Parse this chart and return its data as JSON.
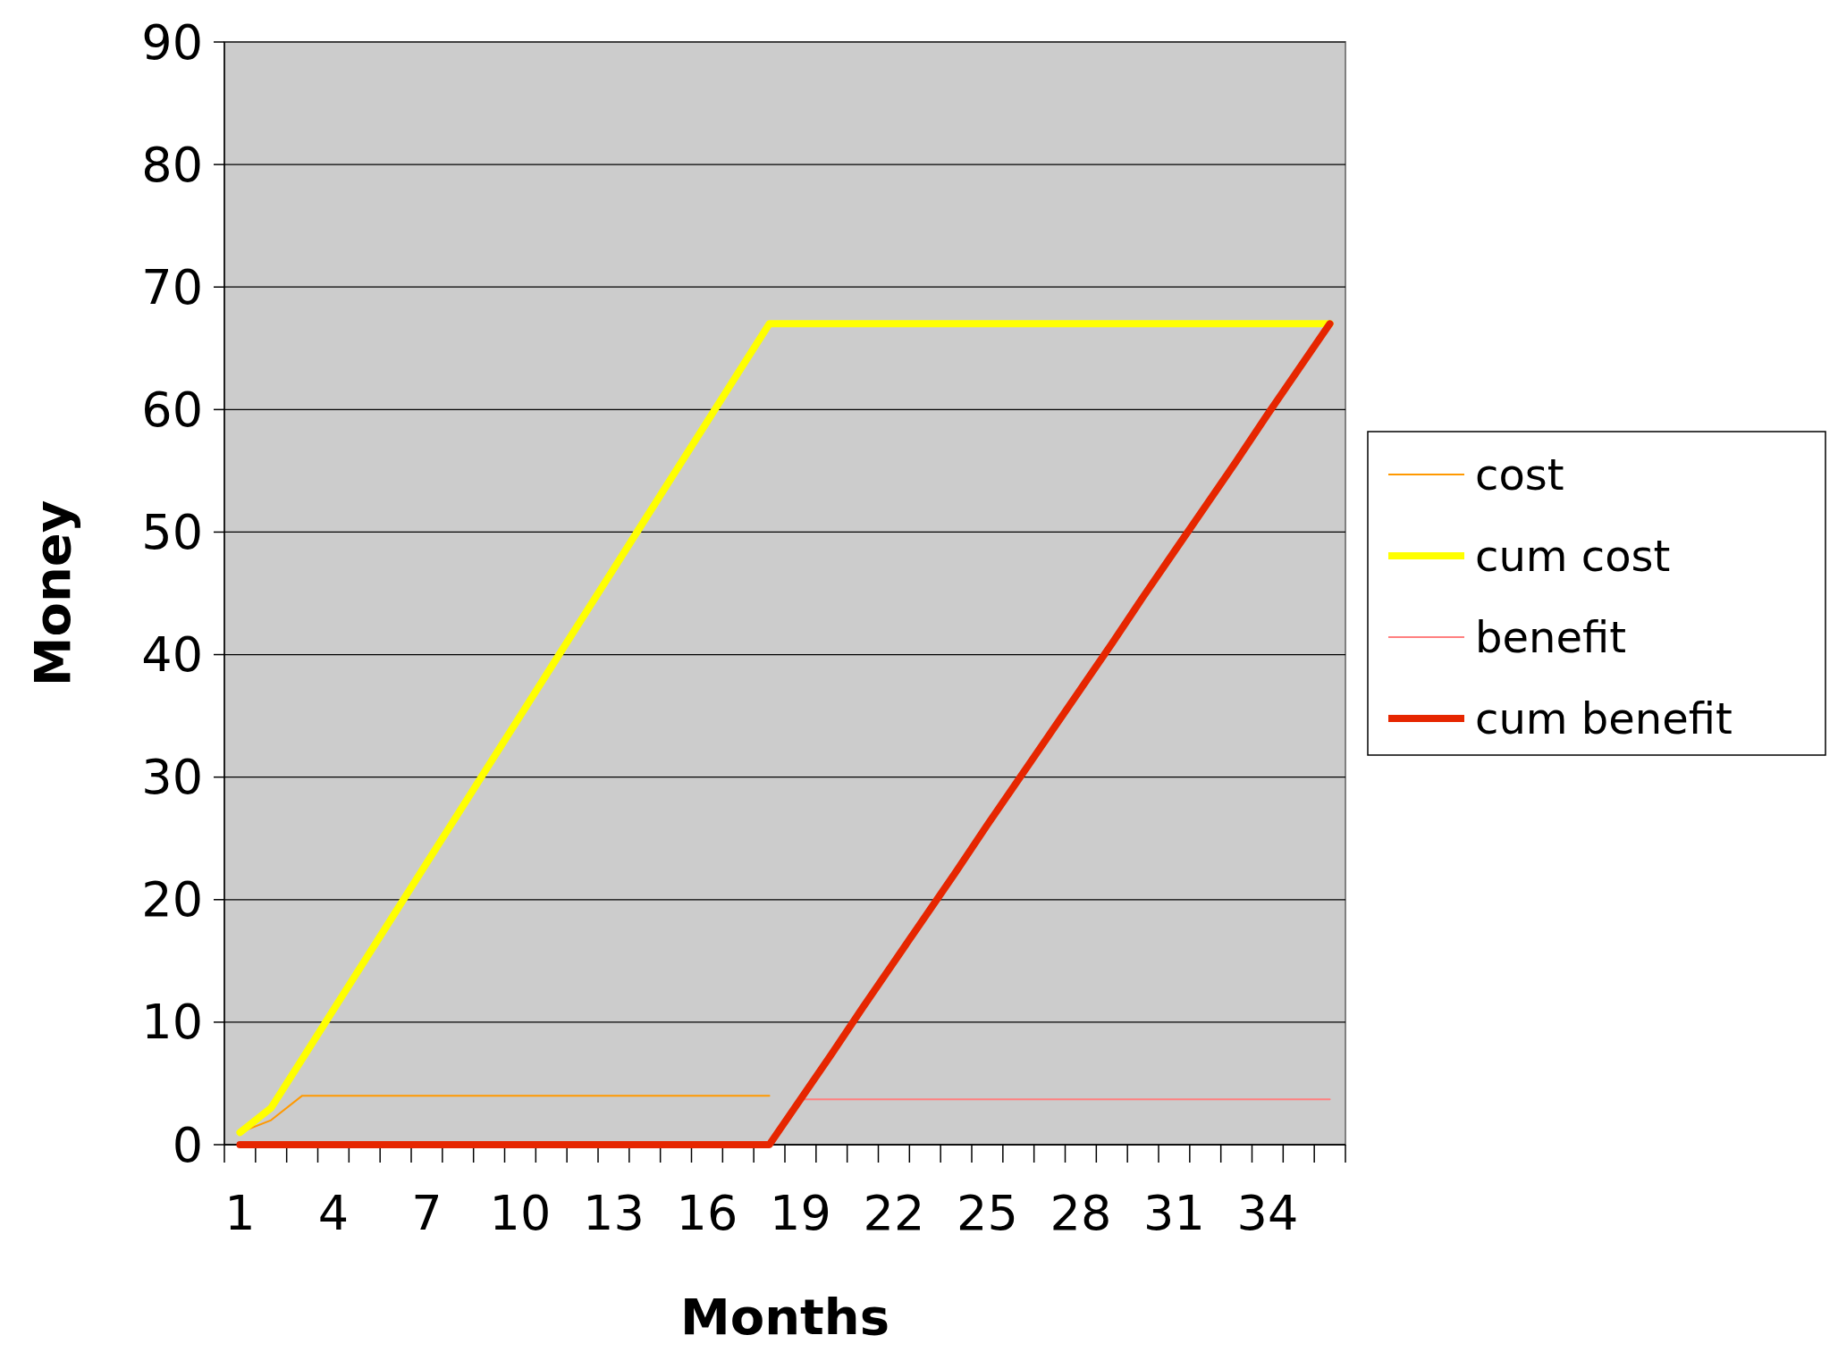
{
  "chart_data": {
    "type": "line",
    "xlabel": "Months",
    "ylabel": "Money",
    "categories": [
      "1",
      null,
      null,
      "4",
      null,
      null,
      "7",
      null,
      null,
      "10",
      null,
      null,
      "13",
      null,
      null,
      "16",
      null,
      null,
      "19",
      null,
      null,
      "22",
      null,
      null,
      "25",
      null,
      null,
      "28",
      null,
      null,
      "31",
      null,
      null,
      "34",
      null,
      null
    ],
    "ylim": [
      0,
      90
    ],
    "yticks": [
      0,
      10,
      20,
      30,
      40,
      50,
      60,
      70,
      80,
      90
    ],
    "grid": "y",
    "legend": "right",
    "line_style": "solid",
    "series": [
      {
        "name": "cost",
        "color": "#ff9900",
        "values": [
          1,
          2,
          4,
          4,
          4,
          4,
          4,
          4,
          4,
          4,
          4,
          4,
          4,
          4,
          4,
          4,
          4,
          4,
          null,
          null,
          null,
          null,
          null,
          null,
          null,
          null,
          null,
          null,
          null,
          null,
          null,
          null,
          null,
          null,
          null,
          null
        ]
      },
      {
        "name": "cum cost",
        "color": "#ffff00",
        "values": [
          1,
          3,
          7,
          11,
          15,
          19,
          23,
          27,
          31,
          35,
          39,
          43,
          47,
          51,
          55,
          59,
          63,
          67,
          67,
          67,
          67,
          67,
          67,
          67,
          67,
          67,
          67,
          67,
          67,
          67,
          67,
          67,
          67,
          67,
          67,
          67
        ]
      },
      {
        "name": "benefit",
        "color": "#ff8080",
        "values": [
          null,
          null,
          null,
          null,
          null,
          null,
          null,
          null,
          null,
          null,
          null,
          null,
          null,
          null,
          null,
          null,
          null,
          null,
          3.7,
          3.7,
          3.7,
          3.7,
          3.7,
          3.7,
          3.7,
          3.7,
          3.7,
          3.7,
          3.7,
          3.7,
          3.7,
          3.7,
          3.7,
          3.7,
          3.7,
          3.7
        ]
      },
      {
        "name": "cum benefit",
        "color": "#e62600",
        "values": [
          0,
          0,
          0,
          0,
          0,
          0,
          0,
          0,
          0,
          0,
          0,
          0,
          0,
          0,
          0,
          0,
          0,
          0,
          3.7,
          7.4,
          11.2,
          14.9,
          18.6,
          22.3,
          26.1,
          29.8,
          33.5,
          37.2,
          40.9,
          44.7,
          48.4,
          52.1,
          55.8,
          59.6,
          63.3,
          67
        ]
      }
    ]
  }
}
